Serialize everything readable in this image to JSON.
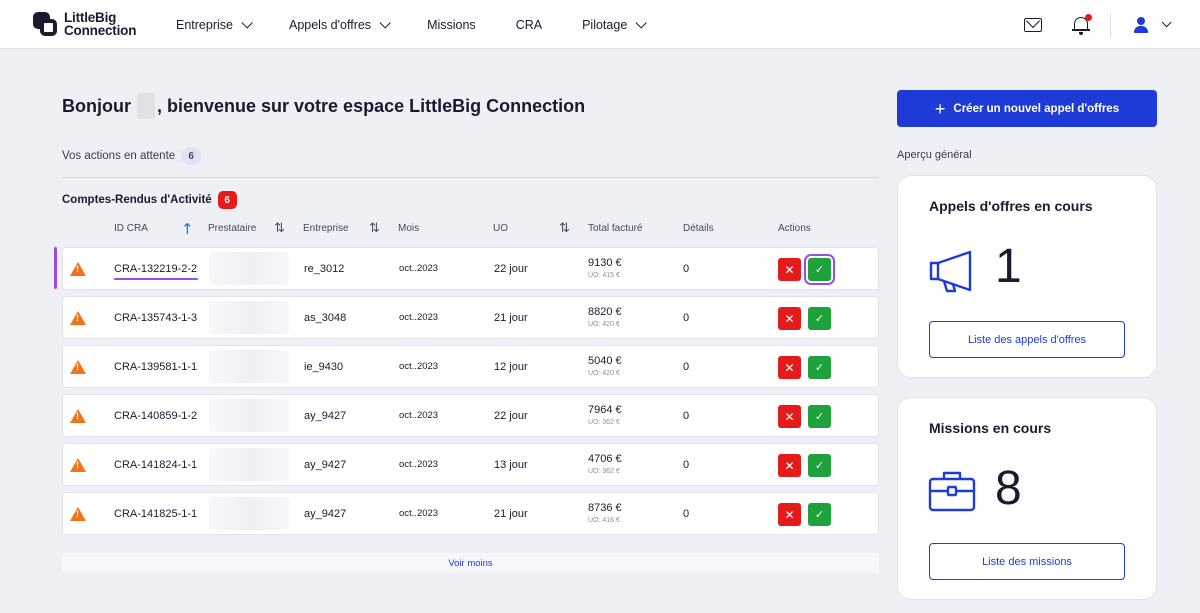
{
  "nav": {
    "logo_line1": "LittleBig",
    "logo_line2": "Connection",
    "items": [
      {
        "label": "Entreprise",
        "dropdown": true
      },
      {
        "label": "Appels d'offres",
        "dropdown": true
      },
      {
        "label": "Missions",
        "dropdown": false
      },
      {
        "label": "CRA",
        "dropdown": false
      },
      {
        "label": "Pilotage",
        "dropdown": true
      }
    ],
    "icons": [
      "mail-icon",
      "bell-icon",
      "user-icon"
    ]
  },
  "greeting": {
    "prefix": "Bonjour",
    "suffix": ", bienvenue sur votre espace LittleBig Connection"
  },
  "pending": {
    "label": "Vos actions en attente",
    "count": "6"
  },
  "section": {
    "title": "Comptes-Rendus d'Activité",
    "count": "6"
  },
  "table": {
    "headers": {
      "id": "ID CRA",
      "prestataire": "Prestataire",
      "entreprise": "Entreprise",
      "mois": "Mois",
      "uo": "UO",
      "total": "Total facturé",
      "details": "Détails",
      "actions": "Actions"
    },
    "rows": [
      {
        "id": "CRA-132219-2-2",
        "entreprise": "re_3012",
        "mois": "oct..2023",
        "uo": "22 jour",
        "total": "9130 €",
        "uo_price": "UO: 415 €",
        "details": "0"
      },
      {
        "id": "CRA-135743-1-3",
        "entreprise": "as_3048",
        "mois": "oct..2023",
        "uo": "21 jour",
        "total": "8820 €",
        "uo_price": "UO: 420 €",
        "details": "0"
      },
      {
        "id": "CRA-139581-1-1",
        "entreprise": "ie_9430",
        "mois": "oct..2023",
        "uo": "12 jour",
        "total": "5040 €",
        "uo_price": "UO: 420 €",
        "details": "0"
      },
      {
        "id": "CRA-140859-1-2",
        "entreprise": "ay_9427",
        "mois": "oct..2023",
        "uo": "22 jour",
        "total": "7964 €",
        "uo_price": "UO: 362 €",
        "details": "0"
      },
      {
        "id": "CRA-141824-1-1",
        "entreprise": "ay_9427",
        "mois": "oct..2023",
        "uo": "13 jour",
        "total": "4706 €",
        "uo_price": "UO: 362 €",
        "details": "0"
      },
      {
        "id": "CRA-141825-1-1",
        "entreprise": "ay_9427",
        "mois": "oct..2023",
        "uo": "21 jour",
        "total": "8736 €",
        "uo_price": "UO: 416 €",
        "details": "0"
      }
    ],
    "reject_symbol": "✕",
    "approve_symbol": "✓"
  },
  "voir_moins": "Voir moins",
  "sidebar": {
    "cta": "Créer un nouvel appel d'offres",
    "apercu": "Aperçu général",
    "cards": [
      {
        "title": "Appels d'offres en cours",
        "number": "1",
        "button": "Liste des appels d'offres",
        "icon": "megaphone-icon"
      },
      {
        "title": "Missions en cours",
        "number": "8",
        "button": "Liste des missions",
        "icon": "briefcase-icon"
      }
    ]
  },
  "colors": {
    "primary": "#1e3bd8",
    "danger": "#e41b1b",
    "success": "#1fa13b",
    "warning": "#f0741c",
    "focus": "#9c4ce0"
  }
}
